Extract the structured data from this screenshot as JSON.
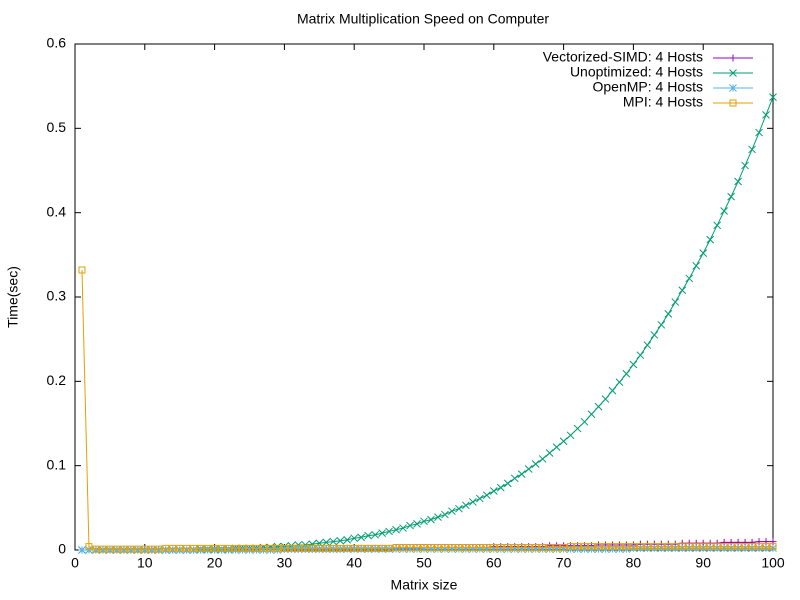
{
  "chart_data": {
    "type": "line",
    "title": "Matrix Multiplication Speed on Computer",
    "x_label": "Matrix size",
    "y_label": "Time(sec)",
    "x": [
      1,
      2,
      3,
      4,
      5,
      6,
      7,
      8,
      9,
      10,
      11,
      12,
      13,
      14,
      15,
      16,
      17,
      18,
      19,
      20,
      21,
      22,
      23,
      24,
      25,
      26,
      27,
      28,
      29,
      30,
      31,
      32,
      33,
      34,
      35,
      36,
      37,
      38,
      39,
      40,
      41,
      42,
      43,
      44,
      45,
      46,
      47,
      48,
      49,
      50,
      51,
      52,
      53,
      54,
      55,
      56,
      57,
      58,
      59,
      60,
      61,
      62,
      63,
      64,
      65,
      66,
      67,
      68,
      69,
      70,
      71,
      72,
      73,
      74,
      75,
      76,
      77,
      78,
      79,
      80,
      81,
      82,
      83,
      84,
      85,
      86,
      87,
      88,
      89,
      90,
      91,
      92,
      93,
      94,
      95,
      96,
      97,
      98,
      99,
      100
    ],
    "series": [
      {
        "name": "Vectorized-SIMD: 4 Hosts",
        "color": "#9400d3",
        "marker": "plus",
        "values": [
          0,
          0,
          0,
          0,
          0,
          0,
          0,
          0,
          0,
          0,
          0,
          0,
          0,
          0,
          0,
          0,
          0,
          0,
          0,
          0,
          0,
          0,
          0.001,
          0.001,
          0.001,
          0.001,
          0.001,
          0.001,
          0.001,
          0.001,
          0.001,
          0.001,
          0.001,
          0.001,
          0.001,
          0.001,
          0.001,
          0.001,
          0.002,
          0.002,
          0.002,
          0.002,
          0.002,
          0.002,
          0.002,
          0.002,
          0.002,
          0.002,
          0.002,
          0.003,
          0.003,
          0.003,
          0.003,
          0.003,
          0.003,
          0.003,
          0.003,
          0.003,
          0.003,
          0.004,
          0.004,
          0.004,
          0.004,
          0.004,
          0.004,
          0.004,
          0.004,
          0.005,
          0.005,
          0.005,
          0.005,
          0.005,
          0.005,
          0.005,
          0.006,
          0.006,
          0.006,
          0.006,
          0.006,
          0.006,
          0.007,
          0.007,
          0.007,
          0.007,
          0.007,
          0.007,
          0.008,
          0.008,
          0.008,
          0.008,
          0.008,
          0.008,
          0.009,
          0.009,
          0.009,
          0.009,
          0.009,
          0.01,
          0.01,
          0.01
        ]
      },
      {
        "name": "Unoptimized: 4 Hosts",
        "color": "#009e73",
        "marker": "cross",
        "values": [
          0,
          0,
          0,
          0,
          0,
          0,
          0,
          0,
          0,
          0,
          0,
          0,
          0,
          0,
          0,
          0,
          0,
          0.001,
          0.001,
          0.001,
          0.001,
          0.001,
          0.002,
          0.002,
          0.002,
          0.002,
          0.003,
          0.003,
          0.004,
          0.004,
          0.005,
          0.006,
          0.006,
          0.007,
          0.008,
          0.009,
          0.01,
          0.011,
          0.012,
          0.014,
          0.015,
          0.017,
          0.018,
          0.02,
          0.022,
          0.024,
          0.026,
          0.029,
          0.031,
          0.034,
          0.036,
          0.039,
          0.042,
          0.046,
          0.049,
          0.053,
          0.057,
          0.061,
          0.065,
          0.07,
          0.074,
          0.079,
          0.085,
          0.09,
          0.096,
          0.102,
          0.108,
          0.115,
          0.122,
          0.129,
          0.136,
          0.144,
          0.152,
          0.161,
          0.17,
          0.179,
          0.189,
          0.199,
          0.209,
          0.22,
          0.231,
          0.243,
          0.255,
          0.267,
          0.28,
          0.294,
          0.308,
          0.322,
          0.337,
          0.352,
          0.368,
          0.385,
          0.402,
          0.419,
          0.437,
          0.456,
          0.475,
          0.495,
          0.516,
          0.537
        ]
      },
      {
        "name": "OpenMP: 4 Hosts",
        "color": "#56b4e9",
        "marker": "star",
        "values": [
          0,
          0,
          0,
          0,
          0,
          0,
          0,
          0,
          0,
          0,
          0,
          0,
          0,
          0,
          0,
          0,
          0,
          0,
          0,
          0,
          0,
          0,
          0,
          0,
          0,
          0,
          0,
          0,
          0,
          0.001,
          0.001,
          0.001,
          0.001,
          0.001,
          0.001,
          0.001,
          0.001,
          0.001,
          0.001,
          0.001,
          0.001,
          0.001,
          0.001,
          0.001,
          0.001,
          0.001,
          0.001,
          0.001,
          0.001,
          0.001,
          0.001,
          0.001,
          0.001,
          0.001,
          0.001,
          0.001,
          0.001,
          0.001,
          0.001,
          0.001,
          0.001,
          0.001,
          0.001,
          0.001,
          0.001,
          0.001,
          0.001,
          0.001,
          0.001,
          0.001,
          0.001,
          0.001,
          0.001,
          0.001,
          0.001,
          0.001,
          0.001,
          0.001,
          0.001,
          0.002,
          0.002,
          0.002,
          0.002,
          0.002,
          0.002,
          0.002,
          0.002,
          0.002,
          0.002,
          0.002,
          0.002,
          0.002,
          0.002,
          0.002,
          0.002,
          0.002,
          0.002,
          0.002,
          0.002,
          0.002
        ]
      },
      {
        "name": "MPI: 4 Hosts",
        "color": "#e69f00",
        "marker": "square",
        "values": [
          0.332,
          0.004,
          0.001,
          0.001,
          0.001,
          0.001,
          0.001,
          0.001,
          0.001,
          0.001,
          0.001,
          0.001,
          0.002,
          0.002,
          0.002,
          0.002,
          0.002,
          0.002,
          0.002,
          0.002,
          0.002,
          0.002,
          0.002,
          0.002,
          0.002,
          0.002,
          0.002,
          0.002,
          0.002,
          0.002,
          0.002,
          0.002,
          0.002,
          0.002,
          0.002,
          0.002,
          0.002,
          0.002,
          0.002,
          0.002,
          0.002,
          0.002,
          0.002,
          0.002,
          0.002,
          0.003,
          0.003,
          0.003,
          0.003,
          0.003,
          0.003,
          0.003,
          0.003,
          0.003,
          0.003,
          0.003,
          0.003,
          0.003,
          0.003,
          0.003,
          0.003,
          0.003,
          0.003,
          0.003,
          0.003,
          0.003,
          0.003,
          0.003,
          0.003,
          0.003,
          0.004,
          0.004,
          0.004,
          0.004,
          0.004,
          0.004,
          0.004,
          0.004,
          0.004,
          0.004,
          0.004,
          0.004,
          0.004,
          0.004,
          0.004,
          0.004,
          0.004,
          0.004,
          0.004,
          0.004,
          0.004,
          0.004,
          0.004,
          0.004,
          0.004,
          0.004,
          0.004,
          0.004,
          0.004,
          0.004
        ]
      }
    ],
    "xlim": [
      0,
      100
    ],
    "xticks": [
      0,
      10,
      20,
      30,
      40,
      50,
      60,
      70,
      80,
      90,
      100
    ],
    "ylim": [
      0,
      0.6
    ],
    "yticks": [
      0,
      0.1,
      0.2,
      0.3,
      0.4,
      0.5,
      0.6
    ],
    "grid": false,
    "legend": "top right"
  }
}
